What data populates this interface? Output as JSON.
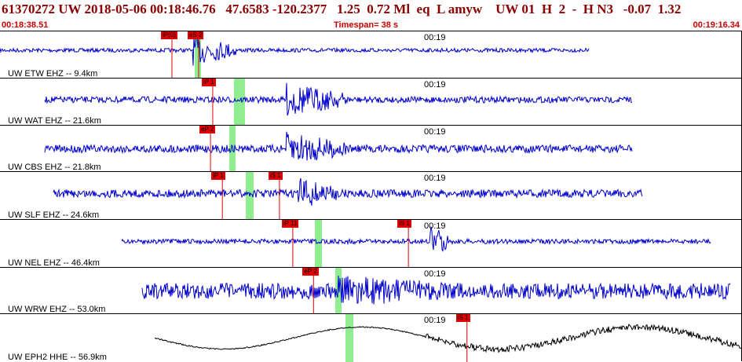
{
  "header": {
    "event_line": "61370272 UW 2018-05-06 00:18:46.76   47.6583 -120.2377   1.25  0.72 Ml  eq  L amyw    UW 01  H  2  -  H N3   -0.07  1.32",
    "start_time": "00:18:38.51",
    "timespan": "Timespan=  38 s",
    "end_time": "00:19:16.34"
  },
  "colors": {
    "title": "#8b0000",
    "time": "#cc0000",
    "trace": "#0000cc",
    "trace_hh": "#000000",
    "pick": "#e00000",
    "window": "#90ee90"
  },
  "panels": [
    {
      "label": "UW ETW EHZ -- 9.4km",
      "tick": "00:19",
      "trace_color": "#0000cc",
      "picks": [
        {
          "text": "iP(0)",
          "pos": 0.232
        },
        {
          "text": "eS 2",
          "pos": 0.268
        }
      ]
    },
    {
      "label": "UW WAT EHZ -- 21.6km",
      "tick": "00:19",
      "trace_color": "#0000cc",
      "picks": [
        {
          "text": "iP 1",
          "pos": 0.287
        }
      ]
    },
    {
      "label": "UW CBS EHZ -- 21.8km",
      "tick": "00:19",
      "trace_color": "#0000cc",
      "picks": [
        {
          "text": "eP 2",
          "pos": 0.284
        }
      ]
    },
    {
      "label": "UW SLF EHZ -- 24.6km",
      "tick": "00:19",
      "trace_color": "#0000cc",
      "picks": [
        {
          "text": "iP 1",
          "pos": 0.3
        },
        {
          "text": "iS 1",
          "pos": 0.377
        }
      ]
    },
    {
      "label": "UW NEL EHZ -- 46.4km",
      "tick": "00:19",
      "trace_color": "#0000cc",
      "picks": [
        {
          "text": "iP 11",
          "pos": 0.395
        },
        {
          "text": "iS 1",
          "pos": 0.551
        }
      ]
    },
    {
      "label": "UW WRW EHZ -- 53.0km",
      "tick": "00:19",
      "trace_color": "#0000cc",
      "picks": [
        {
          "text": "eP 2",
          "pos": 0.423
        }
      ]
    },
    {
      "label": "UW EPH2 HHE -- 56.9km",
      "tick": "00:19",
      "trace_color": "#000000",
      "picks": [
        {
          "text": "iS 1",
          "pos": 0.63
        }
      ]
    }
  ]
}
